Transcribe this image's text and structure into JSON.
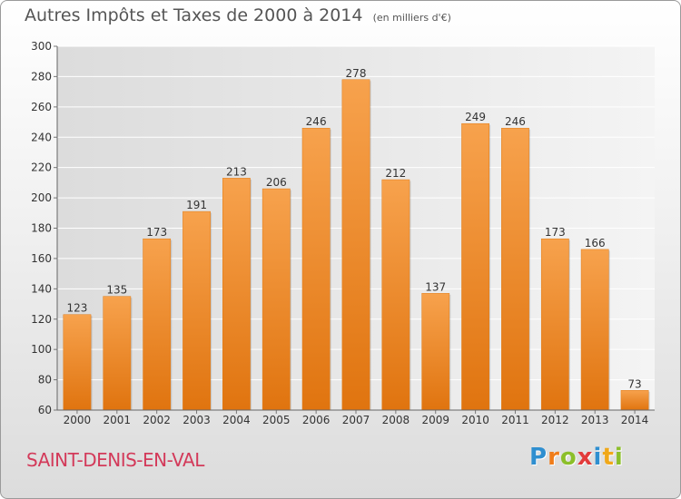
{
  "chart_data": {
    "type": "bar",
    "title": "Autres Impôts et Taxes de 2000 à 2014",
    "subtitle": "(en milliers d'€)",
    "categories": [
      "2000",
      "2001",
      "2002",
      "2003",
      "2004",
      "2005",
      "2006",
      "2007",
      "2008",
      "2009",
      "2010",
      "2011",
      "2012",
      "2013",
      "2014"
    ],
    "values": [
      123,
      135,
      173,
      191,
      213,
      206,
      246,
      278,
      212,
      137,
      249,
      246,
      173,
      166,
      73
    ],
    "ylim": [
      60,
      300
    ],
    "yticks": [
      60,
      80,
      100,
      120,
      140,
      160,
      180,
      200,
      220,
      240,
      260,
      280,
      300
    ],
    "grid": true,
    "bar_color": "#f08a1f"
  },
  "place_name": "SAINT-DENIS-EN-VAL",
  "logo": {
    "text": "Proxiti",
    "letters": [
      {
        "ch": "P",
        "color": "#2f8fd0"
      },
      {
        "ch": "r",
        "color": "#f07d1a"
      },
      {
        "ch": "o",
        "color": "#8cbf2a"
      },
      {
        "ch": "x",
        "color": "#e23a3a"
      },
      {
        "ch": "i",
        "color": "#2f8fd0"
      },
      {
        "ch": "t",
        "color": "#f0a81a"
      },
      {
        "ch": "i",
        "color": "#8cbf2a"
      }
    ]
  }
}
